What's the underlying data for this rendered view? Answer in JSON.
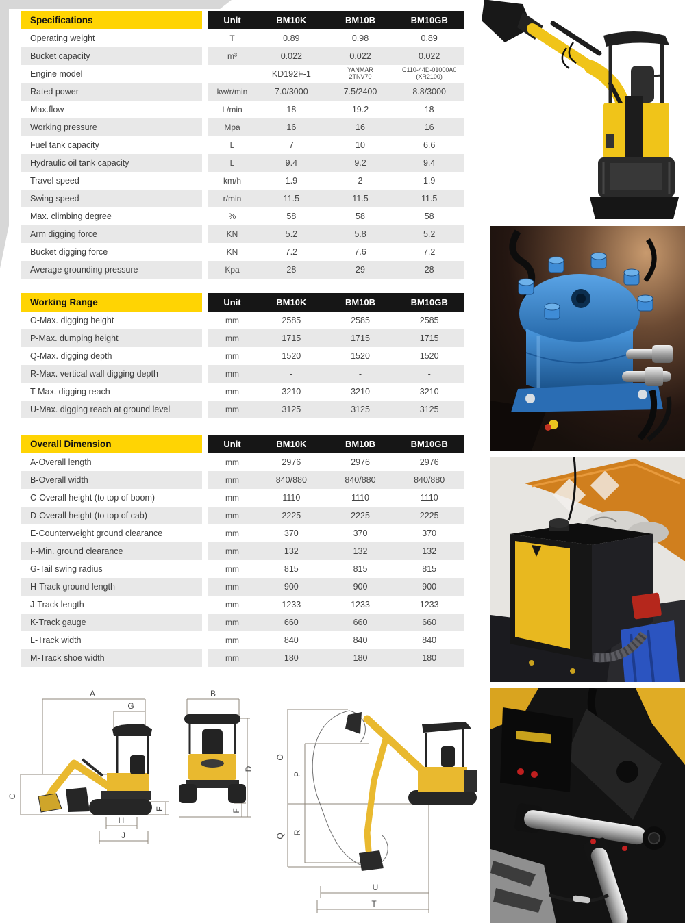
{
  "tables": [
    {
      "title": "Specifications",
      "unit_header": "Unit",
      "model_headers": [
        "BM10K",
        "BM10B",
        "BM10GB"
      ],
      "rows": [
        {
          "label": "Operating weight",
          "unit": "T",
          "values": [
            "0.89",
            "0.98",
            "0.89"
          ]
        },
        {
          "label": "Bucket capacity",
          "unit": "m³",
          "values": [
            "0.022",
            "0.022",
            "0.022"
          ]
        },
        {
          "label": "Engine model",
          "unit": "",
          "values": [
            "KD192F-1",
            "YANMAR\n2TNV70",
            "C110-44D-01000A0\n(XR2100)"
          ]
        },
        {
          "label": "Rated power",
          "unit": "kw/r/min",
          "values": [
            "7.0/3000",
            "7.5/2400",
            "8.8/3000"
          ]
        },
        {
          "label": "Max.flow",
          "unit": "L/min",
          "values": [
            "18",
            "19.2",
            "18"
          ]
        },
        {
          "label": "Working pressure",
          "unit": "Mpa",
          "values": [
            "16",
            "16",
            "16"
          ]
        },
        {
          "label": "Fuel tank capacity",
          "unit": "L",
          "values": [
            "7",
            "10",
            "6.6"
          ]
        },
        {
          "label": "Hydraulic oil tank capacity",
          "unit": "L",
          "values": [
            "9.4",
            "9.2",
            "9.4"
          ]
        },
        {
          "label": "Travel speed",
          "unit": "km/h",
          "values": [
            "1.9",
            "2",
            "1.9"
          ]
        },
        {
          "label": "Swing speed",
          "unit": "r/min",
          "values": [
            "11.5",
            "11.5",
            "11.5"
          ]
        },
        {
          "label": "Max. climbing degree",
          "unit": "%",
          "values": [
            "58",
            "58",
            "58"
          ]
        },
        {
          "label": "Arm digging force",
          "unit": "KN",
          "values": [
            "5.2",
            "5.8",
            "5.2"
          ]
        },
        {
          "label": "Bucket digging force",
          "unit": "KN",
          "values": [
            "7.2",
            "7.6",
            "7.2"
          ]
        },
        {
          "label": "Average grounding pressure",
          "unit": "Kpa",
          "values": [
            "28",
            "29",
            "28"
          ]
        }
      ]
    },
    {
      "title": "Working Range",
      "unit_header": "Unit",
      "model_headers": [
        "BM10K",
        "BM10B",
        "BM10GB"
      ],
      "rows": [
        {
          "label": "O-Max. digging height",
          "unit": "mm",
          "values": [
            "2585",
            "2585",
            "2585"
          ]
        },
        {
          "label": "P-Max. dumping height",
          "unit": "mm",
          "values": [
            "1715",
            "1715",
            "1715"
          ]
        },
        {
          "label": "Q-Max. digging depth",
          "unit": "mm",
          "values": [
            "1520",
            "1520",
            "1520"
          ]
        },
        {
          "label": "R-Max. vertical wall digging depth",
          "unit": "mm",
          "values": [
            "-",
            "-",
            "-"
          ]
        },
        {
          "label": "T-Max. digging reach",
          "unit": "mm",
          "values": [
            "3210",
            "3210",
            "3210"
          ]
        },
        {
          "label": "U-Max. digging reach at ground level",
          "unit": "mm",
          "values": [
            "3125",
            "3125",
            "3125"
          ]
        }
      ]
    },
    {
      "title": "Overall Dimension",
      "unit_header": "Unit",
      "model_headers": [
        "BM10K",
        "BM10B",
        "BM10GB"
      ],
      "rows": [
        {
          "label": "A-Overall length",
          "unit": "mm",
          "values": [
            "2976",
            "2976",
            "2976"
          ]
        },
        {
          "label": "B-Overall width",
          "unit": "mm",
          "values": [
            "840/880",
            "840/880",
            "840/880"
          ]
        },
        {
          "label": "C-Overall height (to top of boom)",
          "unit": "mm",
          "values": [
            "1110",
            "1110",
            "1110"
          ]
        },
        {
          "label": "D-Overall height (to top of cab)",
          "unit": "mm",
          "values": [
            "2225",
            "2225",
            "2225"
          ]
        },
        {
          "label": "E-Counterweight ground clearance",
          "unit": "mm",
          "values": [
            "370",
            "370",
            "370"
          ]
        },
        {
          "label": "F-Min. ground clearance",
          "unit": "mm",
          "values": [
            "132",
            "132",
            "132"
          ]
        },
        {
          "label": "G-Tail swing radius",
          "unit": "mm",
          "values": [
            "815",
            "815",
            "815"
          ]
        },
        {
          "label": "H-Track ground length",
          "unit": "mm",
          "values": [
            "900",
            "900",
            "900"
          ]
        },
        {
          "label": "J-Track length",
          "unit": "mm",
          "values": [
            "1233",
            "1233",
            "1233"
          ]
        },
        {
          "label": "K-Track gauge",
          "unit": "mm",
          "values": [
            "660",
            "660",
            "660"
          ]
        },
        {
          "label": "L-Track width",
          "unit": "mm",
          "values": [
            "840",
            "840",
            "840"
          ]
        },
        {
          "label": "M-Track shoe width",
          "unit": "mm",
          "values": [
            "180",
            "180",
            "180"
          ]
        }
      ]
    }
  ],
  "diagrams": {
    "side": {
      "labels": [
        "A",
        "G",
        "C",
        "E",
        "H",
        "J"
      ]
    },
    "front": {
      "labels": [
        "B",
        "D",
        "F"
      ]
    },
    "range": {
      "labels": [
        "O",
        "P",
        "Q",
        "R",
        "U",
        "T"
      ]
    }
  },
  "colors": {
    "accent_yellow": "#ffd403",
    "header_black": "#161616",
    "row_gray": "#e8e8e8"
  },
  "photos": [
    {
      "name": "excavator-product-photo"
    },
    {
      "name": "swing-motor-photo"
    },
    {
      "name": "engine-compartment-photo"
    },
    {
      "name": "undercarriage-hydraulics-photo"
    }
  ]
}
